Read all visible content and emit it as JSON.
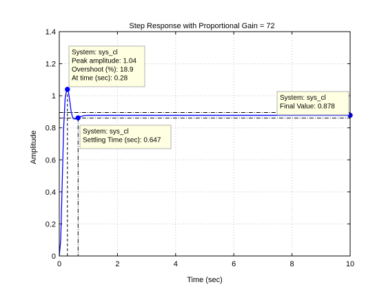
{
  "chart_data": {
    "type": "line",
    "title": "Step Response with Proportional Gain = 72",
    "xlabel": "Time (sec)",
    "ylabel": "Amplitude",
    "xlim": [
      0,
      10
    ],
    "ylim": [
      0,
      1.4
    ],
    "xticks": [
      0,
      2,
      4,
      6,
      8,
      10
    ],
    "yticks": [
      0,
      0.2,
      0.4,
      0.6,
      0.8,
      1,
      1.2,
      1.4
    ],
    "grid": true,
    "series": [
      {
        "color": "#0000ff",
        "x": [
          0,
          0.05,
          0.1,
          0.15,
          0.2,
          0.25,
          0.28,
          0.32,
          0.36,
          0.4,
          0.45,
          0.5,
          0.55,
          0.6,
          0.647,
          0.7,
          0.8,
          0.9,
          1.0,
          1.2,
          1.5,
          2,
          3,
          4,
          5,
          6,
          7,
          8,
          9,
          10
        ],
        "y": [
          0,
          0.1,
          0.45,
          0.8,
          0.98,
          1.035,
          1.04,
          1.02,
          0.97,
          0.91,
          0.87,
          0.855,
          0.855,
          0.862,
          0.862,
          0.868,
          0.874,
          0.877,
          0.878,
          0.878,
          0.878,
          0.878,
          0.878,
          0.878,
          0.878,
          0.878,
          0.878,
          0.878,
          0.878,
          0.878
        ]
      }
    ],
    "settling_bounds": [
      0.8604,
      0.8956
    ],
    "characteristic_points": [
      {
        "name": "peak",
        "x": 0.28,
        "y": 1.04
      },
      {
        "name": "settling",
        "x": 0.647,
        "y": 0.862
      },
      {
        "name": "final",
        "x": 10,
        "y": 0.878
      }
    ],
    "datatips": [
      {
        "id": "peak",
        "lines": [
          "System: sys_cl",
          "Peak amplitude: 1.04",
          "Overshoot (%): 18.9",
          "At time (sec): 0.28"
        ]
      },
      {
        "id": "settling",
        "lines": [
          "System: sys_cl",
          "Settling Time (sec): 0.647"
        ]
      },
      {
        "id": "final",
        "lines": [
          "System: sys_cl",
          "Final Value: 0.878"
        ]
      }
    ]
  },
  "colors": {
    "line": "#0000ff",
    "datatip_bg": "#ffffe1",
    "datatip_border": "#b0b0b0",
    "grid": "#bcbcbc",
    "axes": "#000000"
  }
}
